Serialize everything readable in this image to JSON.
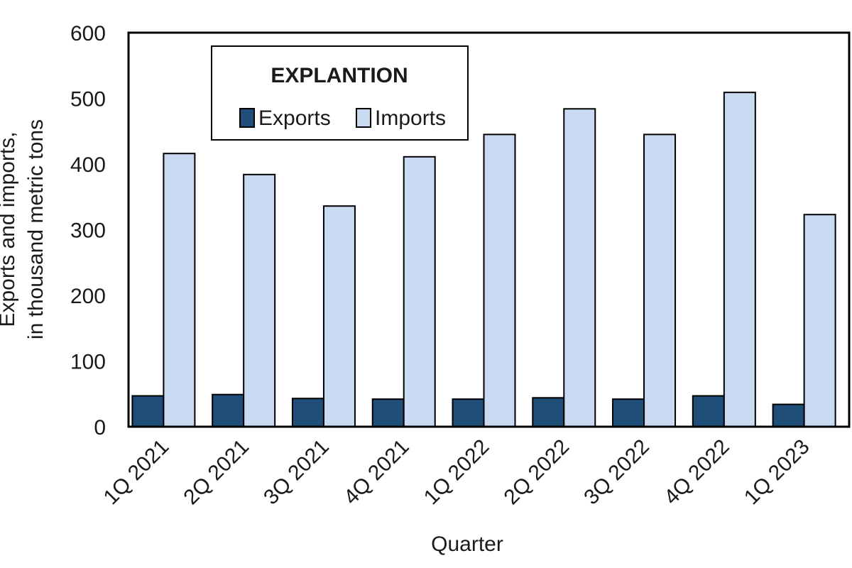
{
  "chart_data": {
    "type": "bar",
    "title": "",
    "xlabel": "Quarter",
    "ylabel_lines": [
      "Exports and imports,",
      "in thousand metric tons"
    ],
    "categories": [
      "1Q 2021",
      "2Q 2021",
      "3Q 2021",
      "4Q 2021",
      "1Q 2022",
      "2Q 2022",
      "3Q 2022",
      "4Q 2022",
      "1Q 2023"
    ],
    "series": [
      {
        "name": "Exports",
        "color": "#1f4e79",
        "values": [
          47,
          49,
          43,
          42,
          42,
          44,
          42,
          47,
          34
        ]
      },
      {
        "name": "Imports",
        "color": "#c9daf2",
        "values": [
          416,
          384,
          336,
          411,
          445,
          484,
          445,
          509,
          323
        ]
      }
    ],
    "ylim": [
      0,
      600
    ],
    "yticks": [
      0,
      100,
      200,
      300,
      400,
      500,
      600
    ],
    "grid": false,
    "legend": {
      "title": "EXPLANTION",
      "position": "top-left"
    }
  }
}
